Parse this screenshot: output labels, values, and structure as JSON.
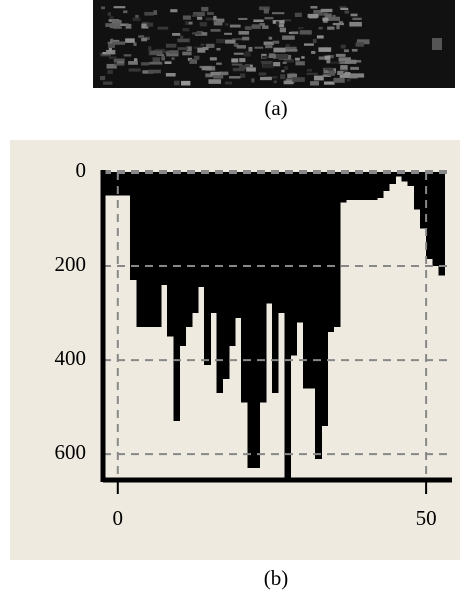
{
  "panel_labels": {
    "a": "(a)",
    "b": "(b)"
  },
  "chart_data": {
    "type": "bar",
    "orientation": "hanging",
    "x": [
      -2,
      -1,
      0,
      1,
      2,
      3,
      4,
      5,
      6,
      7,
      8,
      9,
      10,
      11,
      12,
      13,
      14,
      15,
      16,
      17,
      18,
      19,
      20,
      21,
      22,
      23,
      24,
      25,
      26,
      27,
      28,
      29,
      30,
      31,
      32,
      33,
      34,
      35,
      36,
      37,
      38,
      39,
      40,
      41,
      42,
      43,
      44,
      45,
      46,
      47,
      48,
      49,
      50,
      51,
      52
    ],
    "values": [
      50,
      50,
      50,
      50,
      230,
      330,
      330,
      330,
      330,
      240,
      350,
      530,
      370,
      330,
      300,
      245,
      410,
      300,
      470,
      440,
      370,
      310,
      490,
      630,
      630,
      490,
      280,
      470,
      300,
      650,
      390,
      320,
      460,
      460,
      610,
      540,
      340,
      330,
      65,
      60,
      60,
      60,
      60,
      60,
      55,
      40,
      25,
      10,
      20,
      30,
      80,
      120,
      185,
      200,
      220
    ],
    "color": "#000000",
    "xlim": [
      -2.4,
      54.2
    ],
    "ylim": [
      0,
      655
    ],
    "xticks": [
      0,
      50
    ],
    "yticks": [
      0,
      200,
      400,
      600
    ],
    "y_inverted": true,
    "grid": true
  }
}
